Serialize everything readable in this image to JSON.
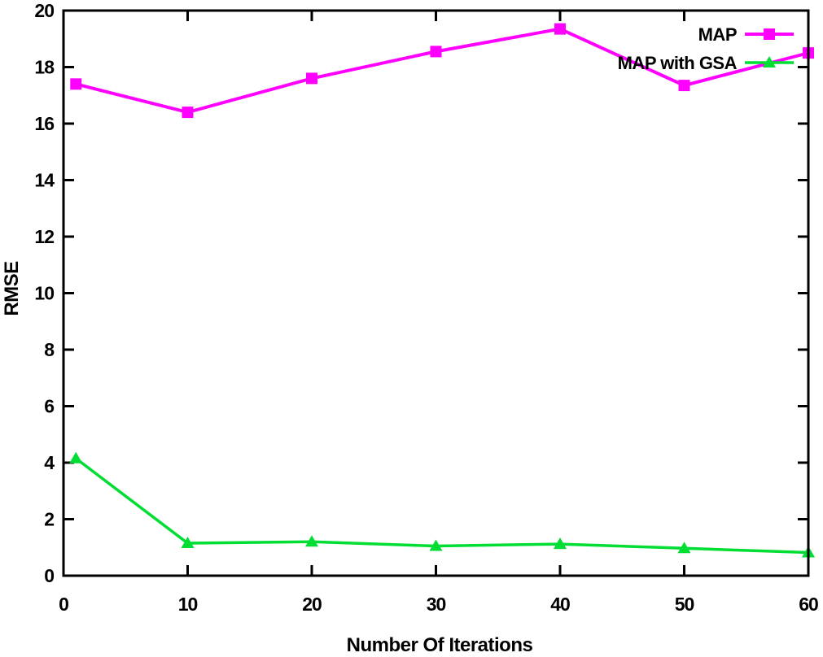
{
  "chart_data": {
    "type": "line",
    "title": "",
    "xlabel": "Number Of Iterations",
    "ylabel": "RMSE",
    "xlim": [
      0,
      60
    ],
    "ylim": [
      0,
      20
    ],
    "xticks": [
      0,
      10,
      20,
      30,
      40,
      50,
      60
    ],
    "yticks": [
      0,
      2,
      4,
      6,
      8,
      10,
      12,
      14,
      16,
      18,
      20
    ],
    "grid": false,
    "legend_position": "top-right-inside",
    "background_color": "#ffffff",
    "axis_color": "#000000",
    "x": [
      1,
      10,
      20,
      30,
      40,
      50,
      60
    ],
    "series": [
      {
        "name": "MAP",
        "color": "#ff00ff",
        "marker": "square",
        "values": [
          17.4,
          16.4,
          17.6,
          18.55,
          19.35,
          17.35,
          18.5
        ]
      },
      {
        "name": "MAP with GSA",
        "color": "#00dd33",
        "marker": "triangle",
        "values": [
          4.15,
          1.15,
          1.2,
          1.05,
          1.12,
          0.97,
          0.82
        ]
      }
    ]
  }
}
